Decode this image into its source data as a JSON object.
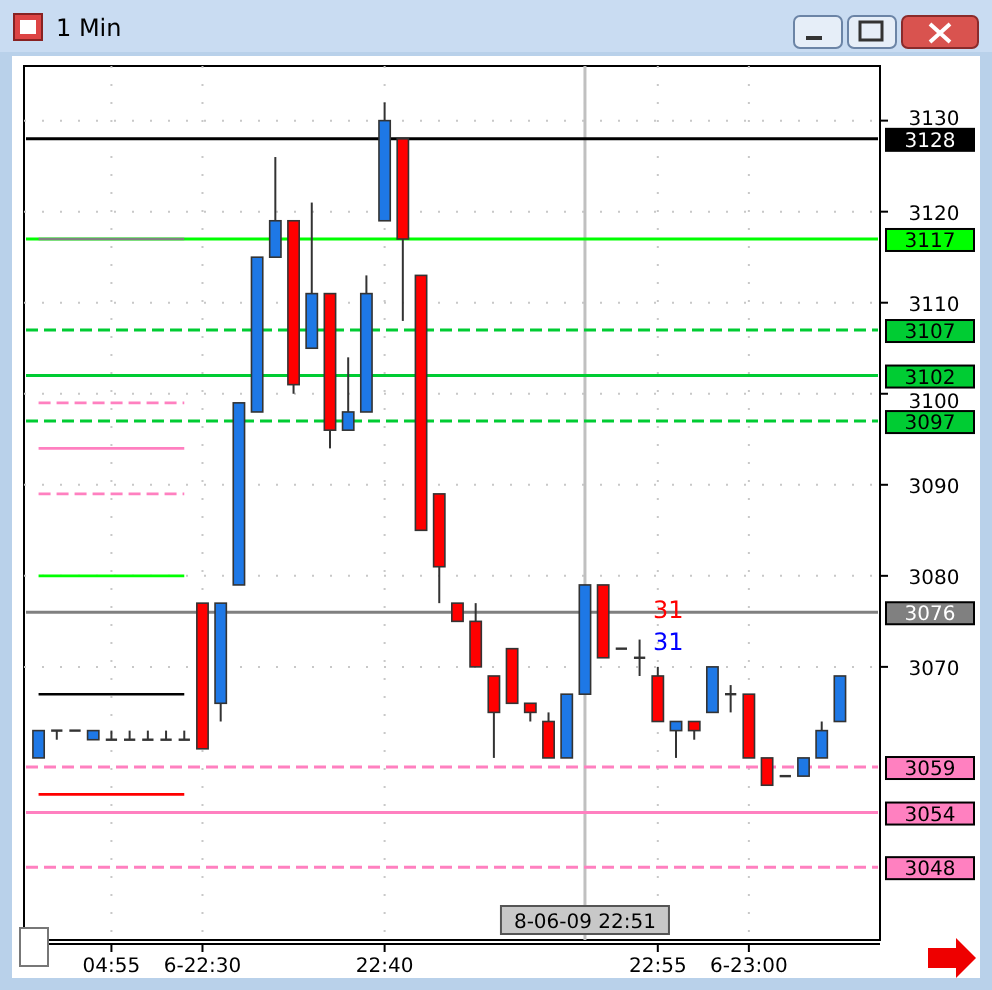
{
  "chart_data": {
    "type": "candlestick",
    "title": "1 Min",
    "categories": [
      null,
      null,
      null,
      null,
      "04:55",
      null,
      null,
      null,
      null,
      "6-22:30",
      null,
      null,
      null,
      null,
      null,
      null,
      null,
      null,
      null,
      "22:40",
      null,
      null,
      null,
      null,
      null,
      null,
      null,
      null,
      null,
      null,
      "8-06-09 22:51",
      null,
      null,
      null,
      "22:55",
      null,
      null,
      null,
      null,
      "6-23:00",
      null,
      null,
      null,
      null,
      null
    ],
    "ohlc": [
      [
        3060,
        3063,
        3060,
        3063
      ],
      [
        3063,
        3063,
        3062,
        3063
      ],
      [
        3063,
        3063,
        3063,
        3063
      ],
      [
        3062,
        3063,
        3062,
        3063
      ],
      [
        3062,
        3063,
        3062,
        3062
      ],
      [
        3062,
        3063,
        3062,
        3062
      ],
      [
        3062,
        3063,
        3062,
        3062
      ],
      [
        3062,
        3063,
        3062,
        3062
      ],
      [
        3062,
        3063,
        3062,
        3062
      ],
      [
        3077,
        3077,
        3061,
        3061
      ],
      [
        3066,
        3077,
        3064,
        3077
      ],
      [
        3079,
        3099,
        3079,
        3099
      ],
      [
        3098,
        3115,
        3098,
        3115
      ],
      [
        3115,
        3126,
        3115,
        3119
      ],
      [
        3119,
        3119,
        3100,
        3101
      ],
      [
        3105,
        3121,
        3105,
        3111
      ],
      [
        3111,
        3111,
        3094,
        3096
      ],
      [
        3096,
        3104,
        3096,
        3098
      ],
      [
        3098,
        3113,
        3098,
        3111
      ],
      [
        3119,
        3132,
        3119,
        3130
      ],
      [
        3128,
        3128,
        3108,
        3117
      ],
      [
        3113,
        3113,
        3085,
        3085
      ],
      [
        3089,
        3089,
        3077,
        3081
      ],
      [
        3077,
        3077,
        3075,
        3075
      ],
      [
        3075,
        3077,
        3070,
        3070
      ],
      [
        3069,
        3069,
        3060,
        3065
      ],
      [
        3072,
        3072,
        3066,
        3066
      ],
      [
        3066,
        3066,
        3064,
        3065
      ],
      [
        3064,
        3065,
        3060,
        3060
      ],
      [
        3060,
        3067,
        3060,
        3067
      ],
      [
        3067,
        3079,
        3067,
        3079
      ],
      [
        3079,
        3079,
        3071,
        3071
      ],
      [
        3072,
        3072,
        3072,
        3072
      ],
      [
        3071,
        3073,
        3069,
        3071
      ],
      [
        3069,
        3070,
        3064,
        3064
      ],
      [
        3063,
        3064,
        3060,
        3064
      ],
      [
        3064,
        3064,
        3062,
        3063
      ],
      [
        3065,
        3070,
        3065,
        3070
      ],
      [
        3067,
        3068,
        3065,
        3067
      ],
      [
        3067,
        3067,
        3060,
        3060
      ],
      [
        3060,
        3060,
        3057,
        3057
      ],
      [
        3058,
        3058,
        3058,
        3058
      ],
      [
        3058,
        3060,
        3058,
        3060
      ],
      [
        3060,
        3064,
        3060,
        3063
      ],
      [
        3064,
        3069,
        3064,
        3069
      ]
    ],
    "colors": [
      "#1e78e6",
      "#333333",
      "#333333",
      "#1e78e6",
      "#333333",
      "#333333",
      "#333333",
      "#333333",
      "#333333",
      "#ff0000",
      "#1e78e6",
      "#1e78e6",
      "#1e78e6",
      "#1e78e6",
      "#ff0000",
      "#1e78e6",
      "#ff0000",
      "#1e78e6",
      "#1e78e6",
      "#1e78e6",
      "#ff0000",
      "#ff0000",
      "#ff0000",
      "#ff0000",
      "#ff0000",
      "#ff0000",
      "#ff0000",
      "#ff0000",
      "#ff0000",
      "#1e78e6",
      "#1e78e6",
      "#ff0000",
      "#333333",
      "#333333",
      "#ff0000",
      "#1e78e6",
      "#ff0000",
      "#1e78e6",
      "#333333",
      "#ff0000",
      "#ff0000",
      "#333333",
      "#1e78e6",
      "#1e78e6",
      "#1e78e6"
    ],
    "series": [
      {
        "type": "line",
        "color": "#808080",
        "values": [
          3117,
          3117,
          3117,
          3117,
          3117,
          3117,
          3117,
          3117,
          3117,
          null,
          null,
          null,
          null,
          null,
          null,
          null,
          null,
          null,
          null,
          null,
          null,
          null,
          null,
          null,
          null,
          null,
          null,
          null,
          null,
          null,
          null,
          null,
          null,
          null,
          null,
          null,
          null,
          null,
          null,
          null,
          null,
          null,
          null,
          null,
          null
        ]
      },
      {
        "type": "line",
        "color": "#ff80c0",
        "line_style": "dashed",
        "values": [
          3099,
          3099,
          3099,
          3099,
          3099,
          3099,
          3099,
          3099,
          3099,
          null,
          null,
          null,
          null,
          null,
          null,
          null,
          null,
          null,
          null,
          null,
          null,
          null,
          null,
          null,
          null,
          null,
          null,
          null,
          null,
          null,
          null,
          null,
          null,
          null,
          null,
          null,
          null,
          null,
          null,
          null,
          null,
          null,
          null,
          null,
          null
        ]
      },
      {
        "type": "line",
        "color": "#ff80c0",
        "values": [
          3094,
          3094,
          3094,
          3094,
          3094,
          3094,
          3094,
          3094,
          3094,
          null,
          null,
          null,
          null,
          null,
          null,
          null,
          null,
          null,
          null,
          null,
          null,
          null,
          null,
          null,
          null,
          null,
          null,
          null,
          null,
          null,
          null,
          null,
          null,
          null,
          null,
          null,
          null,
          null,
          null,
          null,
          null,
          null,
          null,
          null,
          null
        ]
      },
      {
        "type": "line",
        "color": "#ff80c0",
        "line_style": "dashed",
        "values": [
          3089,
          3089,
          3089,
          3089,
          3089,
          3089,
          3089,
          3089,
          3089,
          null,
          null,
          null,
          null,
          null,
          null,
          null,
          null,
          null,
          null,
          null,
          null,
          null,
          null,
          null,
          null,
          null,
          null,
          null,
          null,
          null,
          null,
          null,
          null,
          null,
          null,
          null,
          null,
          null,
          null,
          null,
          null,
          null,
          null,
          null,
          null
        ]
      },
      {
        "type": "line",
        "color": "#00ff00",
        "values": [
          3080,
          3080,
          3080,
          3080,
          3080,
          3080,
          3080,
          3080,
          3080,
          null,
          null,
          null,
          null,
          null,
          null,
          null,
          null,
          null,
          null,
          null,
          null,
          null,
          null,
          null,
          null,
          null,
          null,
          null,
          null,
          null,
          null,
          null,
          null,
          null,
          null,
          null,
          null,
          null,
          null,
          null,
          null,
          null,
          null,
          null,
          null
        ]
      },
      {
        "type": "line",
        "color": "#000000",
        "values": [
          3067,
          3067,
          3067,
          3067,
          3067,
          3067,
          3067,
          3067,
          3067,
          null,
          null,
          null,
          null,
          null,
          null,
          null,
          null,
          null,
          null,
          null,
          null,
          null,
          null,
          null,
          null,
          null,
          null,
          null,
          null,
          null,
          null,
          null,
          null,
          null,
          null,
          null,
          null,
          null,
          null,
          null,
          null,
          null,
          null,
          null,
          null
        ]
      },
      {
        "type": "line",
        "color": "#ff0000",
        "values": [
          3056,
          3056,
          3056,
          3056,
          3056,
          3056,
          3056,
          3056,
          3056,
          null,
          null,
          null,
          null,
          null,
          null,
          null,
          null,
          null,
          null,
          null,
          null,
          null,
          null,
          null,
          null,
          null,
          null,
          null,
          null,
          null,
          null,
          null,
          null,
          null,
          null,
          null,
          null,
          null,
          null,
          null,
          null,
          null,
          null,
          null,
          null
        ]
      }
    ],
    "ref_lines": [
      {
        "axis": "y",
        "value": 3128,
        "label": "3128",
        "color": "#000000"
      },
      {
        "axis": "y",
        "value": 3117,
        "label": "3117",
        "color": "#00ff00"
      },
      {
        "axis": "y",
        "value": 3107,
        "label": "3107",
        "color": "#00cc33",
        "line_style": "dashed"
      },
      {
        "axis": "y",
        "value": 3102,
        "label": "3102",
        "color": "#00cc33"
      },
      {
        "axis": "y",
        "value": 3097,
        "label": "3097",
        "color": "#00cc33",
        "line_style": "dashed"
      },
      {
        "axis": "y",
        "value": 3076,
        "label": "3076",
        "color": "#808080"
      },
      {
        "axis": "y",
        "value": 3059,
        "label": "3059",
        "color": "#ff80c0",
        "line_style": "dashed"
      },
      {
        "axis": "y",
        "value": 3054,
        "label": "3054",
        "color": "#ff80c0"
      },
      {
        "axis": "y",
        "value": 3048,
        "label": "3048",
        "color": "#ff80c0",
        "line_style": "dashed"
      },
      {
        "axis": "x",
        "value": "8-06-09 22:51",
        "color": "#c0c0c0"
      }
    ],
    "annotations": [
      "31",
      "31"
    ],
    "ylim": [
      3040,
      3136
    ],
    "yticks": [
      3070,
      3080,
      3090,
      3100,
      3110,
      3120,
      3130
    ],
    "grid": true
  }
}
